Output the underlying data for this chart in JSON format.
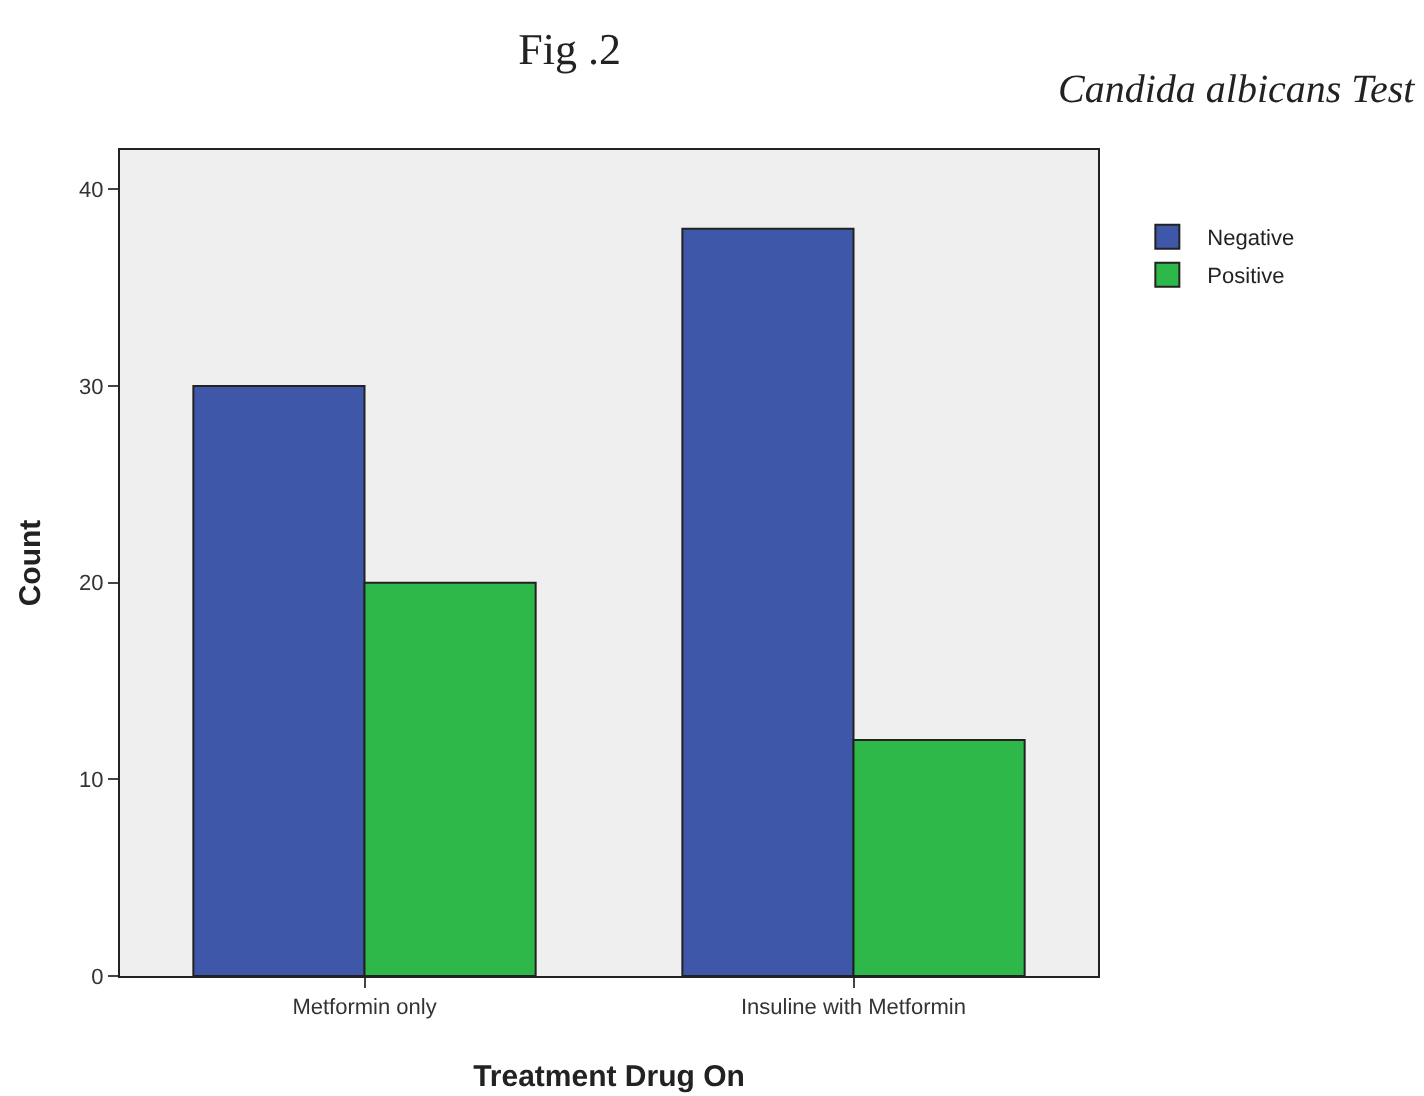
{
  "chart_data": {
    "type": "bar",
    "title": "Fig .2",
    "subtitle": "Candida albicans Test",
    "xlabel": "Treatment Drug On",
    "ylabel": "Count",
    "categories": [
      "Metformin only",
      "Insuline with Metformin"
    ],
    "series": [
      {
        "name": "Negative",
        "color": "#3e57a8",
        "values": [
          30,
          38
        ]
      },
      {
        "name": "Positive",
        "color": "#2fb84a",
        "values": [
          20,
          12
        ]
      }
    ],
    "ylim": [
      0,
      42
    ],
    "yticks": [
      0,
      10,
      20,
      30,
      40
    ],
    "grid": false,
    "legend": "top right"
  }
}
